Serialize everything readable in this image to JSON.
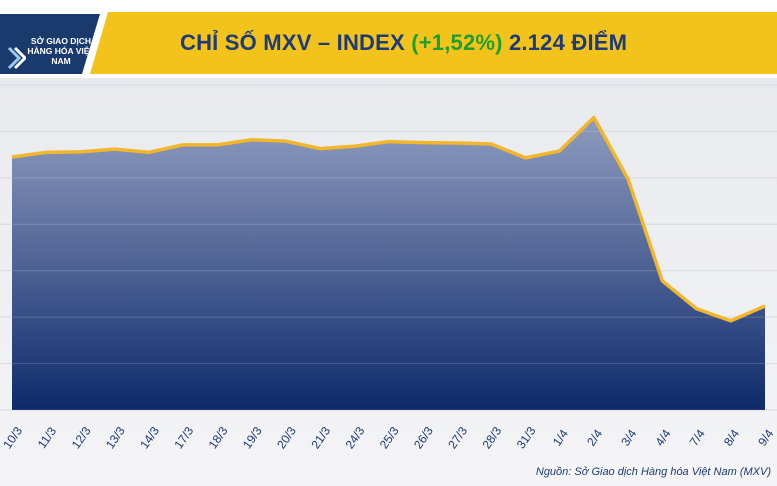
{
  "header": {
    "logo_text": "SỞ GIAO DỊCH HÀNG HÓA VIỆT NAM",
    "title_main": "CHỈ SỐ MXV – INDEX",
    "title_change": "(+1,52%)",
    "title_value": "2.124 ĐIỂM"
  },
  "source": "Nguồn: Sở Giao dịch Hàng hóa Việt Nam (MXV)",
  "colors": {
    "line": "#F2B62B",
    "area_top": "#8f9cc0",
    "area_bottom": "#0e2a6a",
    "title": "#1e3a78",
    "change": "#1e9e2c",
    "band": "#F2C31B"
  },
  "chart_data": {
    "type": "area",
    "title": "CHỈ SỐ MXV – INDEX (+1,52%) 2.124 ĐIỂM",
    "xlabel": "",
    "ylabel": "",
    "grid": true,
    "categories": [
      "10/3",
      "11/3",
      "12/3",
      "13/3",
      "14/3",
      "17/3",
      "18/3",
      "19/3",
      "20/3",
      "21/3",
      "24/3",
      "25/3",
      "26/3",
      "27/3",
      "28/3",
      "31/3",
      "1/4",
      "2/4",
      "3/4",
      "4/4",
      "7/4",
      "8/4",
      "9/4"
    ],
    "series": [
      {
        "values": [
          2445,
          2455,
          2456,
          2462,
          2455,
          2471,
          2471,
          2482,
          2479,
          2463,
          2468,
          2478,
          2476,
          2475,
          2473,
          2443,
          2458,
          2530,
          2397,
          2178,
          2118,
          2092,
          2124
        ]
      }
    ],
    "ylim": [
      1900,
      2600
    ]
  }
}
